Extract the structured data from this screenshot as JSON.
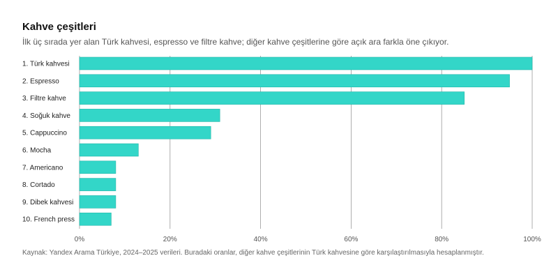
{
  "chart_data": {
    "type": "bar",
    "orientation": "horizontal",
    "title": "Kahve çeşitleri",
    "subtitle": "İlk üç sırada yer alan Türk kahvesi, espresso ve filtre kahve; diğer kahve çeşitlerine göre açık ara farkla öne çıkıyor.",
    "categories": [
      "1. Türk kahvesi",
      "2. Espresso",
      "3. Filtre kahve",
      "4. Soğuk kahve",
      "5. Cappuccino",
      "6. Mocha",
      "7. Americano",
      "8. Cortado",
      "9. Dibek kahvesi",
      "10. French press"
    ],
    "values": [
      100,
      95,
      85,
      31,
      29,
      13,
      8,
      8,
      8,
      7
    ],
    "xlim": [
      0,
      100
    ],
    "xticks": [
      0,
      20,
      40,
      60,
      80,
      100
    ],
    "xtick_labels": [
      "0%",
      "20%",
      "40%",
      "60%",
      "80%",
      "100%"
    ],
    "grid": true,
    "bar_color": "#33d6c8",
    "bar_stroke": "#1fb5a8",
    "source": "Kaynak: Yandex Arama Türkiye, 2024–2025 verileri. Buradaki oranlar, diğer kahve çeşitlerinin Türk kahvesine göre karşılaştırılmasıyla hesaplanmıştır."
  }
}
